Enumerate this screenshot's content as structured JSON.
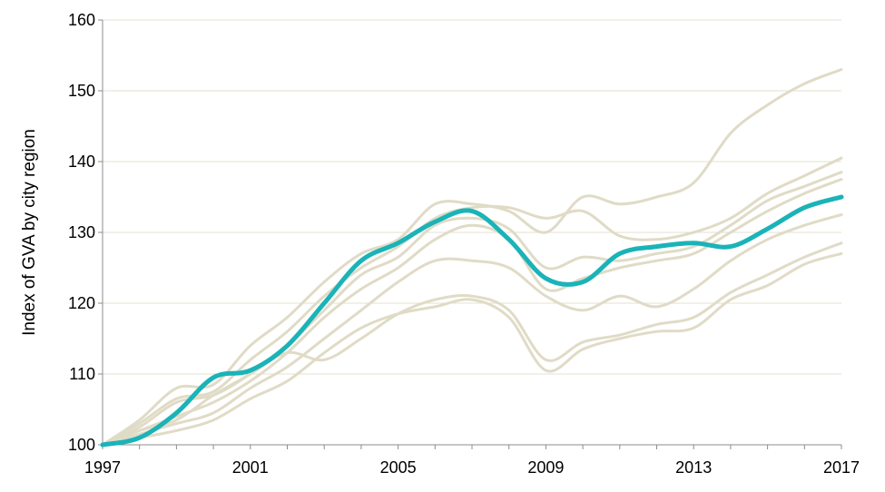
{
  "chart_data": {
    "type": "line",
    "title": "",
    "xlabel": "",
    "ylabel": "Index of GVA by city region",
    "xlim": [
      1997,
      2017
    ],
    "ylim": [
      100,
      160
    ],
    "x_ticks": [
      "1997",
      "2001",
      "2005",
      "2009",
      "2013",
      "2017"
    ],
    "y_ticks": [
      "100",
      "110",
      "120",
      "130",
      "140",
      "150",
      "160"
    ],
    "grid": "horizontal",
    "legend": "none",
    "colors": {
      "background_series": "#e0dbc6",
      "highlight_series": "#1ab3b8",
      "grid": "#e6e2cf",
      "axis": "#8c8c8c"
    },
    "x": [
      1997,
      1998,
      1999,
      2000,
      2001,
      2002,
      2003,
      2004,
      2005,
      2006,
      2007,
      2008,
      2009,
      2010,
      2011,
      2012,
      2013,
      2014,
      2015,
      2016,
      2017
    ],
    "series": [
      {
        "highlight": false,
        "values": [
          100,
          103.5,
          108,
          108.5,
          114,
          118,
          123,
          127,
          129,
          134,
          134,
          133,
          130,
          135,
          134,
          135,
          137,
          144,
          148,
          151,
          153
        ]
      },
      {
        "highlight": false,
        "values": [
          100,
          103,
          106.5,
          107.5,
          112,
          116,
          121,
          125,
          128,
          132,
          133.5,
          133.5,
          132,
          133,
          129.5,
          129,
          130,
          132,
          135.5,
          138,
          140.5
        ]
      },
      {
        "highlight": false,
        "values": [
          100,
          102.5,
          106,
          107,
          110,
          114,
          119,
          124,
          126.5,
          131,
          132,
          130.5,
          125,
          126.5,
          126,
          127,
          128,
          131,
          134.5,
          136.5,
          138.5
        ]
      },
      {
        "highlight": false,
        "values": [
          100,
          102,
          104,
          106,
          109,
          113,
          118,
          122,
          125,
          129,
          131,
          129,
          122,
          123.5,
          125,
          126,
          127,
          130,
          133,
          135.5,
          137.5
        ]
      },
      {
        "highlight": false,
        "values": [
          100,
          101.5,
          103,
          104.5,
          108,
          111,
          115,
          119,
          123,
          126,
          126,
          125,
          121,
          119,
          121,
          119.5,
          122,
          126,
          129,
          131,
          132.5
        ]
      },
      {
        "highlight": false,
        "values": [
          100,
          102,
          103.5,
          107,
          110,
          113,
          112,
          115,
          118.5,
          120.5,
          121,
          119,
          112,
          114.5,
          115.5,
          117,
          118,
          121.5,
          124,
          126.5,
          128.5
        ]
      },
      {
        "highlight": false,
        "values": [
          100,
          101,
          102,
          103.5,
          106.5,
          109,
          113,
          116.5,
          118.5,
          119.5,
          120.5,
          118,
          110.5,
          113.5,
          115,
          116,
          116.5,
          120.5,
          122.5,
          125.5,
          127
        ]
      },
      {
        "highlight": true,
        "values": [
          100,
          101,
          104.5,
          109.5,
          110.5,
          114,
          120,
          126,
          128.5,
          131.5,
          133,
          129,
          123.5,
          123,
          127,
          128,
          128.5,
          128,
          130.5,
          133.5,
          135
        ]
      }
    ]
  }
}
